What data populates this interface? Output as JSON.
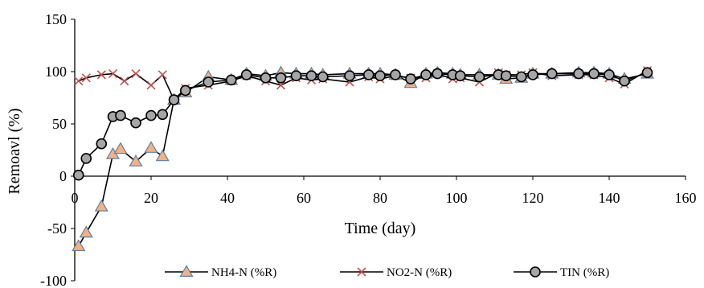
{
  "chart_data": {
    "type": "scatter",
    "title": "",
    "xlabel": "Time (day)",
    "ylabel": "Remoavl (%)",
    "xlim": [
      0,
      160
    ],
    "ylim": [
      -100,
      150
    ],
    "xticks": [
      0,
      20,
      40,
      60,
      80,
      100,
      120,
      140,
      160
    ],
    "yticks": [
      -100,
      -50,
      0,
      50,
      100,
      150
    ],
    "grid": false,
    "legend_position": "bottom",
    "series": [
      {
        "name": "NH4-N (%R)",
        "marker": "triangle",
        "color": "#f4b183",
        "x": [
          1,
          3,
          7,
          10,
          12,
          16,
          20,
          23,
          26,
          29,
          35,
          41,
          45,
          50,
          54,
          58,
          62,
          65,
          72,
          77,
          80,
          84,
          88,
          92,
          95,
          99,
          101,
          106,
          111,
          113,
          117,
          120,
          125,
          132,
          136,
          140,
          144,
          150
        ],
        "y": [
          -67,
          -54,
          -29,
          21,
          26,
          14,
          27,
          19,
          73,
          80,
          95,
          92,
          98,
          96,
          99,
          98,
          98,
          97,
          98,
          98,
          98,
          97,
          89,
          98,
          99,
          98,
          97,
          97,
          97,
          93,
          94,
          98,
          98,
          99,
          99,
          98,
          93,
          98
        ]
      },
      {
        "name": "NO2-N (%R)",
        "marker": "x",
        "color": "#c0504d",
        "x": [
          1,
          3,
          7,
          10,
          13,
          16,
          20,
          23,
          26,
          29,
          35,
          41,
          45,
          50,
          54,
          58,
          62,
          65,
          72,
          77,
          80,
          84,
          88,
          92,
          95,
          99,
          101,
          106,
          111,
          113,
          117,
          120,
          125,
          132,
          136,
          140,
          144,
          150
        ],
        "y": [
          91,
          94,
          97,
          98,
          91,
          98,
          87,
          97,
          73,
          84,
          87,
          91,
          96,
          91,
          87,
          94,
          92,
          93,
          90,
          95,
          93,
          96,
          94,
          94,
          98,
          93,
          94,
          90,
          99,
          97,
          97,
          99,
          96,
          97,
          97,
          94,
          88,
          101
        ]
      },
      {
        "name": "TIN (%R)",
        "marker": "circle",
        "color": "#a6a6a6",
        "x": [
          1,
          3,
          7,
          10,
          12,
          16,
          20,
          23,
          26,
          29,
          35,
          41,
          45,
          50,
          54,
          58,
          62,
          65,
          72,
          77,
          80,
          84,
          88,
          92,
          95,
          99,
          101,
          106,
          111,
          113,
          117,
          120,
          125,
          132,
          136,
          140,
          144,
          150
        ],
        "y": [
          1,
          17,
          31,
          57,
          58,
          51,
          58,
          59,
          73,
          82,
          90,
          92,
          97,
          94,
          94,
          96,
          96,
          95,
          96,
          97,
          96,
          97,
          93,
          97,
          98,
          97,
          96,
          95,
          97,
          96,
          95,
          97,
          98,
          98,
          98,
          97,
          91,
          99
        ]
      }
    ]
  }
}
